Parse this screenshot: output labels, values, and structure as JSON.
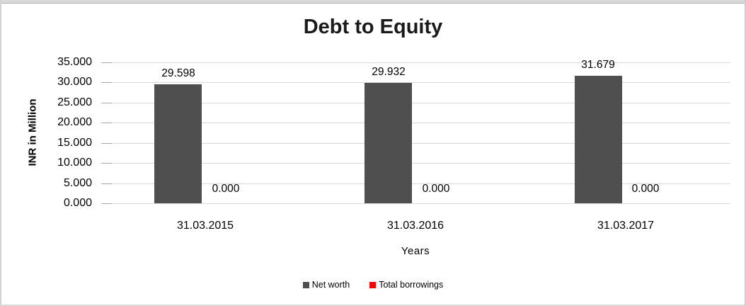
{
  "chart_data": {
    "type": "bar",
    "title": "Debt to Equity",
    "xlabel": "Years",
    "ylabel": "INR in Million",
    "categories": [
      "31.03.2015",
      "31.03.2016",
      "31.03.2017"
    ],
    "series": [
      {
        "name": "Net worth",
        "color": "#4f4f4f",
        "values": [
          29.598,
          29.932,
          31.679
        ],
        "labels": [
          "29.598",
          "29.932",
          "31.679"
        ]
      },
      {
        "name": "Total borrowings",
        "color": "#ff0000",
        "values": [
          0,
          0,
          0
        ],
        "labels": [
          "0.000",
          "0.000",
          "0.000"
        ]
      }
    ],
    "ylim": [
      0,
      35
    ],
    "yticks": [
      0,
      5,
      10,
      15,
      20,
      25,
      30,
      35
    ],
    "ytick_labels": [
      "0.000",
      "5.000",
      "10.000",
      "15.000",
      "20.000",
      "25.000",
      "30.000",
      "35.000"
    ],
    "grid": true,
    "legend_position": "bottom",
    "colors": {
      "gridline": "#d9d9d9",
      "tick": "#a6a6a6",
      "text": "#000000"
    }
  }
}
